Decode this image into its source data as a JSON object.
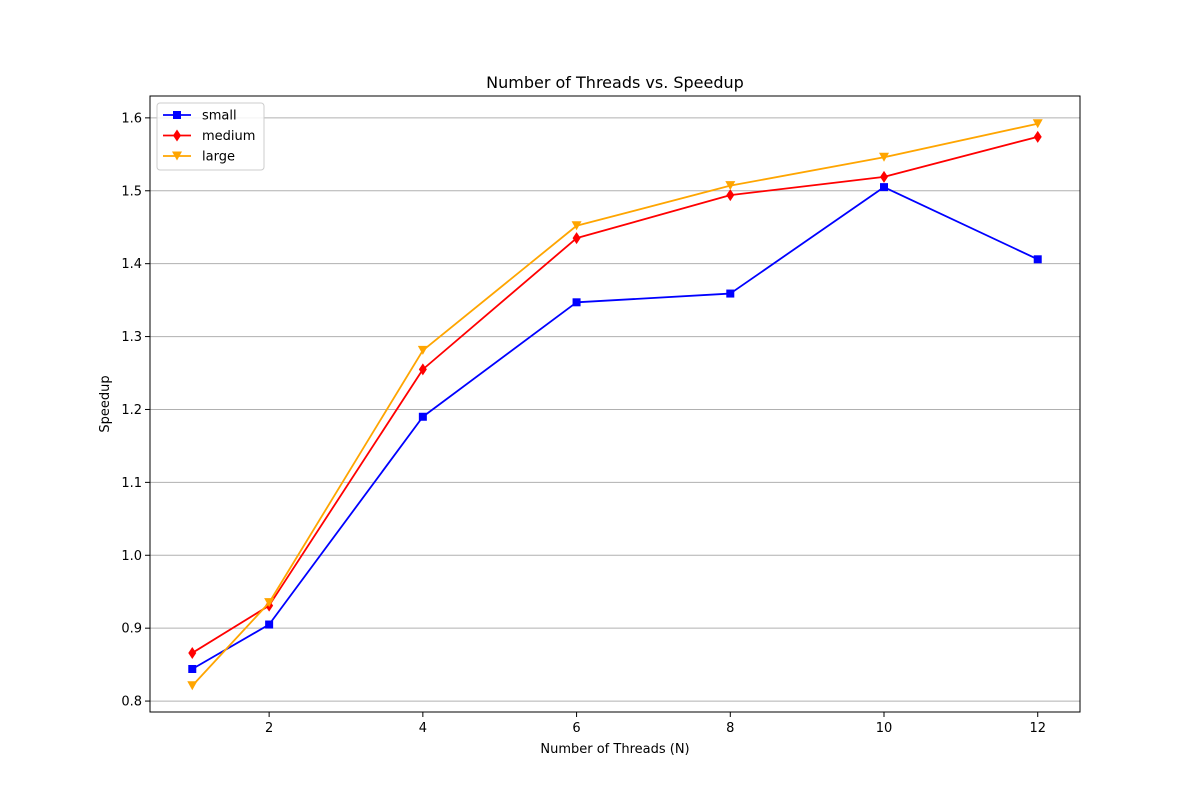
{
  "chart_data": {
    "type": "line",
    "title": "Number of Threads vs. Speedup",
    "xlabel": "Number of Threads (N)",
    "ylabel": "Speedup",
    "x": [
      1,
      2,
      4,
      6,
      8,
      10,
      12
    ],
    "xticks": [
      2,
      4,
      6,
      8,
      10,
      12
    ],
    "yticks": [
      0.8,
      0.9,
      1.0,
      1.1,
      1.2,
      1.3,
      1.4,
      1.5,
      1.6
    ],
    "xlim": [
      0.45,
      12.55
    ],
    "ylim": [
      0.785,
      1.63
    ],
    "grid": "y",
    "legend_position": "top-left",
    "series": [
      {
        "name": "small",
        "color": "#0000ff",
        "marker": "square",
        "values": [
          0.844,
          0.905,
          1.19,
          1.347,
          1.359,
          1.505,
          1.406
        ]
      },
      {
        "name": "medium",
        "color": "#ff0000",
        "marker": "diamond",
        "values": [
          0.866,
          0.931,
          1.255,
          1.435,
          1.494,
          1.519,
          1.574
        ]
      },
      {
        "name": "large",
        "color": "#ffa500",
        "marker": "triangle-down",
        "values": [
          0.821,
          0.935,
          1.281,
          1.452,
          1.507,
          1.546,
          1.592
        ]
      }
    ]
  }
}
